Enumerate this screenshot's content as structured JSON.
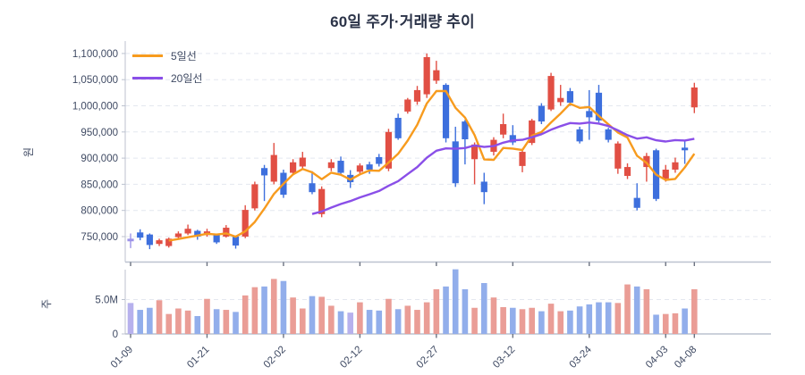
{
  "title": "60일 주가·거래량 추이",
  "legend": [
    {
      "label": "5일선",
      "color": "#f79b1e"
    },
    {
      "label": "20일선",
      "color": "#8a4fe8"
    }
  ],
  "price_axis": {
    "title": "원",
    "tick_values": [
      750000,
      800000,
      850000,
      900000,
      950000,
      1000000,
      1050000,
      1100000
    ],
    "tick_labels": [
      "750,000",
      "800,000",
      "850,000",
      "900,000",
      "950,000",
      "1,000,000",
      "1,050,000",
      "1,100,000"
    ]
  },
  "volume_axis": {
    "title": "주",
    "tick_values": [
      0,
      5
    ],
    "tick_labels": [
      "0",
      "5.0M"
    ]
  },
  "x_axis": {
    "tick_indices": [
      0,
      8,
      16,
      24,
      32,
      40,
      48,
      56,
      59
    ],
    "tick_labels": [
      "01-09",
      "01-21",
      "02-02",
      "02-12",
      "02-27",
      "03-12",
      "03-24",
      "04-03",
      "04-08"
    ]
  },
  "colors": {
    "up": "#e14f44",
    "down": "#3d6fdd",
    "flat": "#9d93e8",
    "vol_up": "#ea9d96",
    "vol_down": "#92aeeb",
    "vol_flat": "#b7b1ed",
    "ma5": "#f79b1e",
    "ma20": "#8a4fe8",
    "grid": "#e4e7ef",
    "axis": "#bcc2cf",
    "text": "#3f4a63",
    "title": "#2b3348"
  },
  "chart_data": [
    {
      "type": "candlestick",
      "name": "주가",
      "unit": "KRW",
      "ylim": [
        700000,
        1120000
      ],
      "dates": [
        "01-09",
        "01-12",
        "01-13",
        "01-14",
        "01-15",
        "01-16",
        "01-19",
        "01-20",
        "01-21",
        "01-22",
        "01-23",
        "01-26",
        "01-27",
        "01-28",
        "01-29",
        "01-30",
        "02-02",
        "02-03",
        "02-04",
        "02-05",
        "02-06",
        "02-09",
        "02-10",
        "02-11",
        "02-12",
        "02-13",
        "02-19",
        "02-20",
        "02-23",
        "02-24",
        "02-25",
        "02-26",
        "02-27",
        "03-03",
        "03-04",
        "03-05",
        "03-06",
        "03-09",
        "03-10",
        "03-11",
        "03-12",
        "03-13",
        "03-16",
        "03-17",
        "03-18",
        "03-19",
        "03-20",
        "03-23",
        "03-24",
        "03-25",
        "03-26",
        "03-27",
        "03-30",
        "03-31",
        "04-01",
        "04-02",
        "04-03",
        "04-06",
        "04-07",
        "04-08"
      ],
      "open": [
        746000,
        758000,
        754000,
        736000,
        732000,
        749000,
        756000,
        761000,
        753000,
        753000,
        750000,
        750000,
        750000,
        804000,
        881000,
        855000,
        872000,
        872000,
        884000,
        852000,
        793000,
        881000,
        895000,
        868000,
        874000,
        888000,
        902000,
        880000,
        977000,
        989000,
        1008000,
        1022000,
        1048000,
        1040000,
        932000,
        970000,
        898000,
        855000,
        912000,
        945000,
        944000,
        885000,
        929000,
        1000000,
        993000,
        1007000,
        1028000,
        955000,
        990000,
        1025000,
        955000,
        880000,
        866000,
        824000,
        883000,
        915000,
        861000,
        878000,
        920000,
        997000
      ],
      "high": [
        756000,
        764000,
        756000,
        746000,
        748000,
        760000,
        773000,
        763000,
        765000,
        756000,
        772000,
        752000,
        810000,
        855000,
        887000,
        929000,
        878000,
        898000,
        912000,
        875000,
        846000,
        898000,
        903000,
        877000,
        890000,
        893000,
        908000,
        956000,
        985000,
        1015000,
        1038000,
        1100000,
        1086000,
        1043000,
        960000,
        973000,
        930000,
        872000,
        940000,
        985000,
        963000,
        918000,
        975000,
        1005000,
        1063000,
        1040000,
        1034000,
        960000,
        1030000,
        1040000,
        958000,
        932000,
        890000,
        852000,
        910000,
        918000,
        887000,
        901000,
        935000,
        1044000
      ],
      "low": [
        728000,
        743000,
        726000,
        732000,
        729000,
        746000,
        753000,
        744000,
        750000,
        736000,
        748000,
        727000,
        747000,
        800000,
        818000,
        850000,
        824000,
        867000,
        880000,
        831000,
        787000,
        875000,
        868000,
        843000,
        868000,
        870000,
        884000,
        875000,
        935000,
        985000,
        1002000,
        1015000,
        1042000,
        930000,
        845000,
        888000,
        850000,
        812000,
        905000,
        938000,
        925000,
        873000,
        925000,
        965000,
        990000,
        1000000,
        1000000,
        928000,
        935000,
        968000,
        930000,
        870000,
        860000,
        800000,
        855000,
        818000,
        855000,
        872000,
        889000,
        986000
      ],
      "close": [
        741000,
        748000,
        734000,
        743000,
        746000,
        756000,
        765000,
        750000,
        760000,
        739000,
        767000,
        733000,
        801000,
        850000,
        867000,
        906000,
        830000,
        892000,
        901000,
        835000,
        841000,
        892000,
        872000,
        854000,
        886000,
        878000,
        889000,
        950000,
        938000,
        1012000,
        1030000,
        1093000,
        1068000,
        938000,
        852000,
        936000,
        926000,
        835000,
        935000,
        965000,
        930000,
        912000,
        972000,
        970000,
        1057000,
        1015000,
        1006000,
        932000,
        978000,
        972000,
        935000,
        928000,
        883000,
        805000,
        904000,
        822000,
        878000,
        892000,
        915000,
        1035000
      ],
      "color": [
        "f",
        "d",
        "d",
        "u",
        "u",
        "u",
        "u",
        "d",
        "u",
        "d",
        "u",
        "d",
        "u",
        "u",
        "d",
        "u",
        "d",
        "u",
        "u",
        "d",
        "u",
        "u",
        "d",
        "d",
        "u",
        "d",
        "d",
        "u",
        "d",
        "u",
        "u",
        "u",
        "u",
        "d",
        "d",
        "d",
        "u",
        "d",
        "u",
        "u",
        "d",
        "u",
        "u",
        "d",
        "u",
        "u",
        "d",
        "d",
        "d",
        "d",
        "d",
        "u",
        "u",
        "d",
        "u",
        "d",
        "u",
        "u",
        "d",
        "u"
      ],
      "ma_windows": [
        5,
        20
      ]
    },
    {
      "type": "bar",
      "name": "거래량",
      "unit": "millions of shares",
      "ylim": [
        0,
        10
      ],
      "values": [
        4.5,
        3.5,
        3.8,
        4.9,
        2.9,
        3.7,
        3.4,
        2.6,
        5.1,
        3.6,
        3.5,
        3.2,
        5.6,
        6.8,
        6.9,
        8.0,
        7.7,
        5.3,
        3.7,
        5.5,
        5.4,
        4.1,
        3.3,
        3.1,
        4.6,
        3.5,
        3.4,
        5.1,
        3.6,
        4.1,
        3.5,
        4.6,
        6.5,
        6.9,
        9.4,
        6.5,
        3.8,
        7.4,
        5.3,
        3.9,
        3.8,
        3.6,
        3.8,
        3.3,
        4.4,
        3.3,
        3.4,
        4.0,
        4.3,
        4.6,
        4.6,
        4.5,
        7.2,
        6.9,
        6.5,
        2.8,
        2.9,
        3.0,
        3.7,
        6.5
      ],
      "color": [
        "f",
        "d",
        "d",
        "u",
        "u",
        "u",
        "u",
        "d",
        "u",
        "d",
        "u",
        "d",
        "u",
        "u",
        "d",
        "u",
        "d",
        "u",
        "u",
        "d",
        "u",
        "u",
        "d",
        "f",
        "u",
        "d",
        "d",
        "u",
        "d",
        "u",
        "u",
        "u",
        "u",
        "d",
        "d",
        "d",
        "u",
        "d",
        "u",
        "u",
        "d",
        "u",
        "u",
        "d",
        "u",
        "u",
        "d",
        "d",
        "d",
        "d",
        "d",
        "u",
        "u",
        "d",
        "u",
        "d",
        "u",
        "u",
        "d",
        "u"
      ]
    }
  ]
}
